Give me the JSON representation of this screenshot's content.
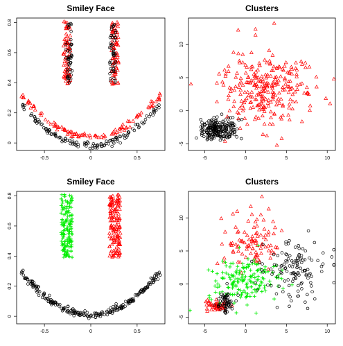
{
  "chart_data": [
    {
      "type": "scatter",
      "title": "Smiley Face",
      "xlabel": "",
      "ylabel": "",
      "xlim": [
        -0.8,
        0.8
      ],
      "ylim": [
        -0.05,
        0.83
      ],
      "xticks": [
        -0.5,
        0.0,
        0.5
      ],
      "yticks": [
        0.0,
        0.2,
        0.4,
        0.6,
        0.8
      ],
      "grid": false,
      "legend": "none",
      "series": [
        {
          "marker": "triangle",
          "color": "#ff0000",
          "regions": [
            {
              "shape": "strip",
              "x_range": [
                -0.3,
                -0.22
              ],
              "y_range": [
                0.39,
                0.81
              ],
              "approx_count": 75
            },
            {
              "shape": "strip",
              "x_range": [
                0.22,
                0.3
              ],
              "y_range": [
                0.39,
                0.81
              ],
              "approx_count": 75
            },
            {
              "shape": "curve",
              "equation": "y = 0.5*x^2 + 0.04",
              "x_range": [
                -0.75,
                0.75
              ],
              "approx_count": 110
            }
          ]
        },
        {
          "marker": "circle",
          "color": "#000000",
          "regions": [
            {
              "shape": "strip",
              "x_range": [
                -0.27,
                -0.2
              ],
              "y_range": [
                0.4,
                0.8
              ],
              "approx_count": 50
            },
            {
              "shape": "strip",
              "x_range": [
                0.2,
                0.27
              ],
              "y_range": [
                0.4,
                0.8
              ],
              "approx_count": 50
            },
            {
              "shape": "curve",
              "equation": "y = 0.5*x^2 - 0.02",
              "x_range": [
                -0.75,
                0.75
              ],
              "approx_count": 140
            }
          ]
        }
      ]
    },
    {
      "type": "scatter",
      "title": "Clusters",
      "xlabel": "",
      "ylabel": "",
      "xlim": [
        -7,
        11
      ],
      "ylim": [
        -6,
        14
      ],
      "xticks": [
        -5,
        0,
        5,
        10
      ],
      "yticks": [
        -5,
        0,
        5,
        10
      ],
      "grid": false,
      "legend": "none",
      "series": [
        {
          "marker": "triangle",
          "color": "#ff0000",
          "regions": [
            {
              "shape": "blob",
              "center": [
                2.5,
                3.5
              ],
              "spread": [
                2.8,
                3.0
              ],
              "approx_count": 280
            },
            {
              "shape": "point",
              "at": [
                3.5,
                13.2
              ]
            }
          ]
        },
        {
          "marker": "circle",
          "color": "#000000",
          "regions": [
            {
              "shape": "blob",
              "center": [
                -3.3,
                -2.8
              ],
              "spread": [
                1.1,
                0.8
              ],
              "approx_count": 220
            }
          ]
        }
      ]
    },
    {
      "type": "scatter",
      "title": "Smiley Face",
      "xlabel": "",
      "ylabel": "",
      "xlim": [
        -0.8,
        0.8
      ],
      "ylim": [
        -0.05,
        0.83
      ],
      "xticks": [
        -0.5,
        0.0,
        0.5
      ],
      "yticks": [
        0.0,
        0.2,
        0.4,
        0.6,
        0.8
      ],
      "grid": false,
      "legend": "none",
      "series": [
        {
          "marker": "plus",
          "color": "#00ee00",
          "regions": [
            {
              "shape": "strip",
              "x_range": [
                -0.32,
                -0.2
              ],
              "y_range": [
                0.39,
                0.81
              ],
              "approx_count": 150
            }
          ]
        },
        {
          "marker": "triangle",
          "color": "#ff0000",
          "regions": [
            {
              "shape": "strip",
              "x_range": [
                0.2,
                0.32
              ],
              "y_range": [
                0.39,
                0.81
              ],
              "approx_count": 150
            }
          ]
        },
        {
          "marker": "circle",
          "color": "#000000",
          "regions": [
            {
              "shape": "curve",
              "equation": "y = 0.5*x^2 + 0.01",
              "x_range": [
                -0.75,
                0.75
              ],
              "approx_count": 250
            }
          ]
        }
      ]
    },
    {
      "type": "scatter",
      "title": "Clusters",
      "xlabel": "",
      "ylabel": "",
      "xlim": [
        -7,
        11
      ],
      "ylim": [
        -6,
        14
      ],
      "xticks": [
        -5,
        0,
        5,
        10
      ],
      "yticks": [
        -5,
        0,
        5,
        10
      ],
      "grid": false,
      "legend": "none",
      "series": [
        {
          "marker": "triangle",
          "color": "#ff0000",
          "regions": [
            {
              "shape": "blob",
              "center": [
                1.0,
                6.5
              ],
              "spread": [
                1.8,
                2.0
              ],
              "approx_count": 100
            },
            {
              "shape": "blob",
              "center": [
                -3.5,
                -3.3
              ],
              "spread": [
                0.7,
                0.4
              ],
              "approx_count": 50
            },
            {
              "shape": "point",
              "at": [
                2.0,
                13.2
              ]
            }
          ]
        },
        {
          "marker": "plus",
          "color": "#00ee00",
          "regions": [
            {
              "shape": "blob",
              "center": [
                0.0,
                0.5
              ],
              "spread": [
                2.3,
                1.6
              ],
              "approx_count": 170
            }
          ]
        },
        {
          "marker": "circle",
          "color": "#000000",
          "regions": [
            {
              "shape": "blob",
              "center": [
                6.0,
                2.0
              ],
              "spread": [
                2.0,
                2.2
              ],
              "approx_count": 130
            },
            {
              "shape": "blob",
              "center": [
                -2.5,
                -2.8
              ],
              "spread": [
                0.5,
                0.8
              ],
              "approx_count": 60
            }
          ]
        }
      ]
    }
  ]
}
